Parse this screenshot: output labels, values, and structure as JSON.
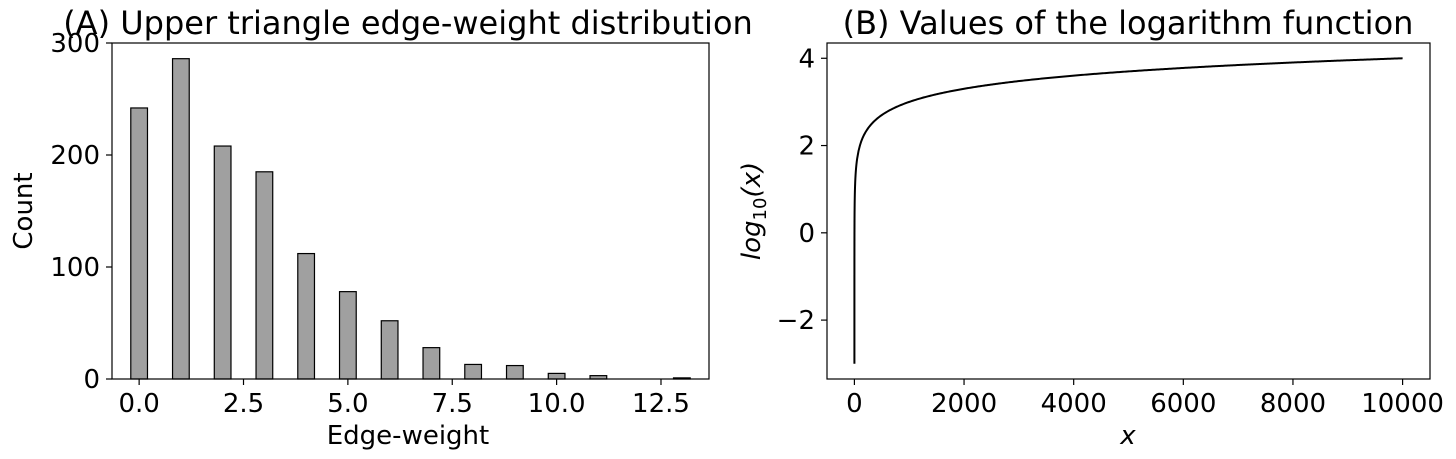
{
  "chart_data": [
    {
      "type": "bar",
      "title": "(A) Upper triangle edge-weight distribution",
      "xlabel": "Edge-weight",
      "ylabel": "Count",
      "xlim": [
        -0.65,
        13.65
      ],
      "ylim": [
        0,
        300
      ],
      "xticks": [
        0.0,
        2.5,
        5.0,
        7.5,
        10.0,
        12.5
      ],
      "xtick_labels": [
        "0.0",
        "2.5",
        "5.0",
        "7.5",
        "10.0",
        "12.5"
      ],
      "yticks": [
        0,
        100,
        200,
        300
      ],
      "ytick_labels": [
        "0",
        "100",
        "200",
        "300"
      ],
      "bar_color": "#a0a0a0",
      "edge_color": "#000000",
      "x": [
        0,
        1,
        2,
        3,
        4,
        5,
        6,
        7,
        8,
        9,
        10,
        11,
        13
      ],
      "values": [
        242,
        286,
        208,
        185,
        112,
        78,
        52,
        28,
        13,
        12,
        5,
        3,
        1
      ],
      "bar_width": 0.4
    },
    {
      "type": "line",
      "title": "(B) Values of the logarithm function",
      "xlabel": "x",
      "ylabel": {
        "base": "log",
        "sub": "10",
        "arg": "(x)"
      },
      "function": "log10",
      "x_range": [
        0.001,
        10000
      ],
      "xlim": [
        -500,
        10500
      ],
      "ylim": [
        -3.35,
        4.35
      ],
      "xticks": [
        0,
        2000,
        4000,
        6000,
        8000,
        10000
      ],
      "xtick_labels": [
        "0",
        "2000",
        "4000",
        "6000",
        "8000",
        "10000"
      ],
      "yticks": [
        -2,
        0,
        2,
        4
      ],
      "ytick_labels": [
        "−2",
        "0",
        "2",
        "4"
      ],
      "line_color": "#000000"
    }
  ]
}
